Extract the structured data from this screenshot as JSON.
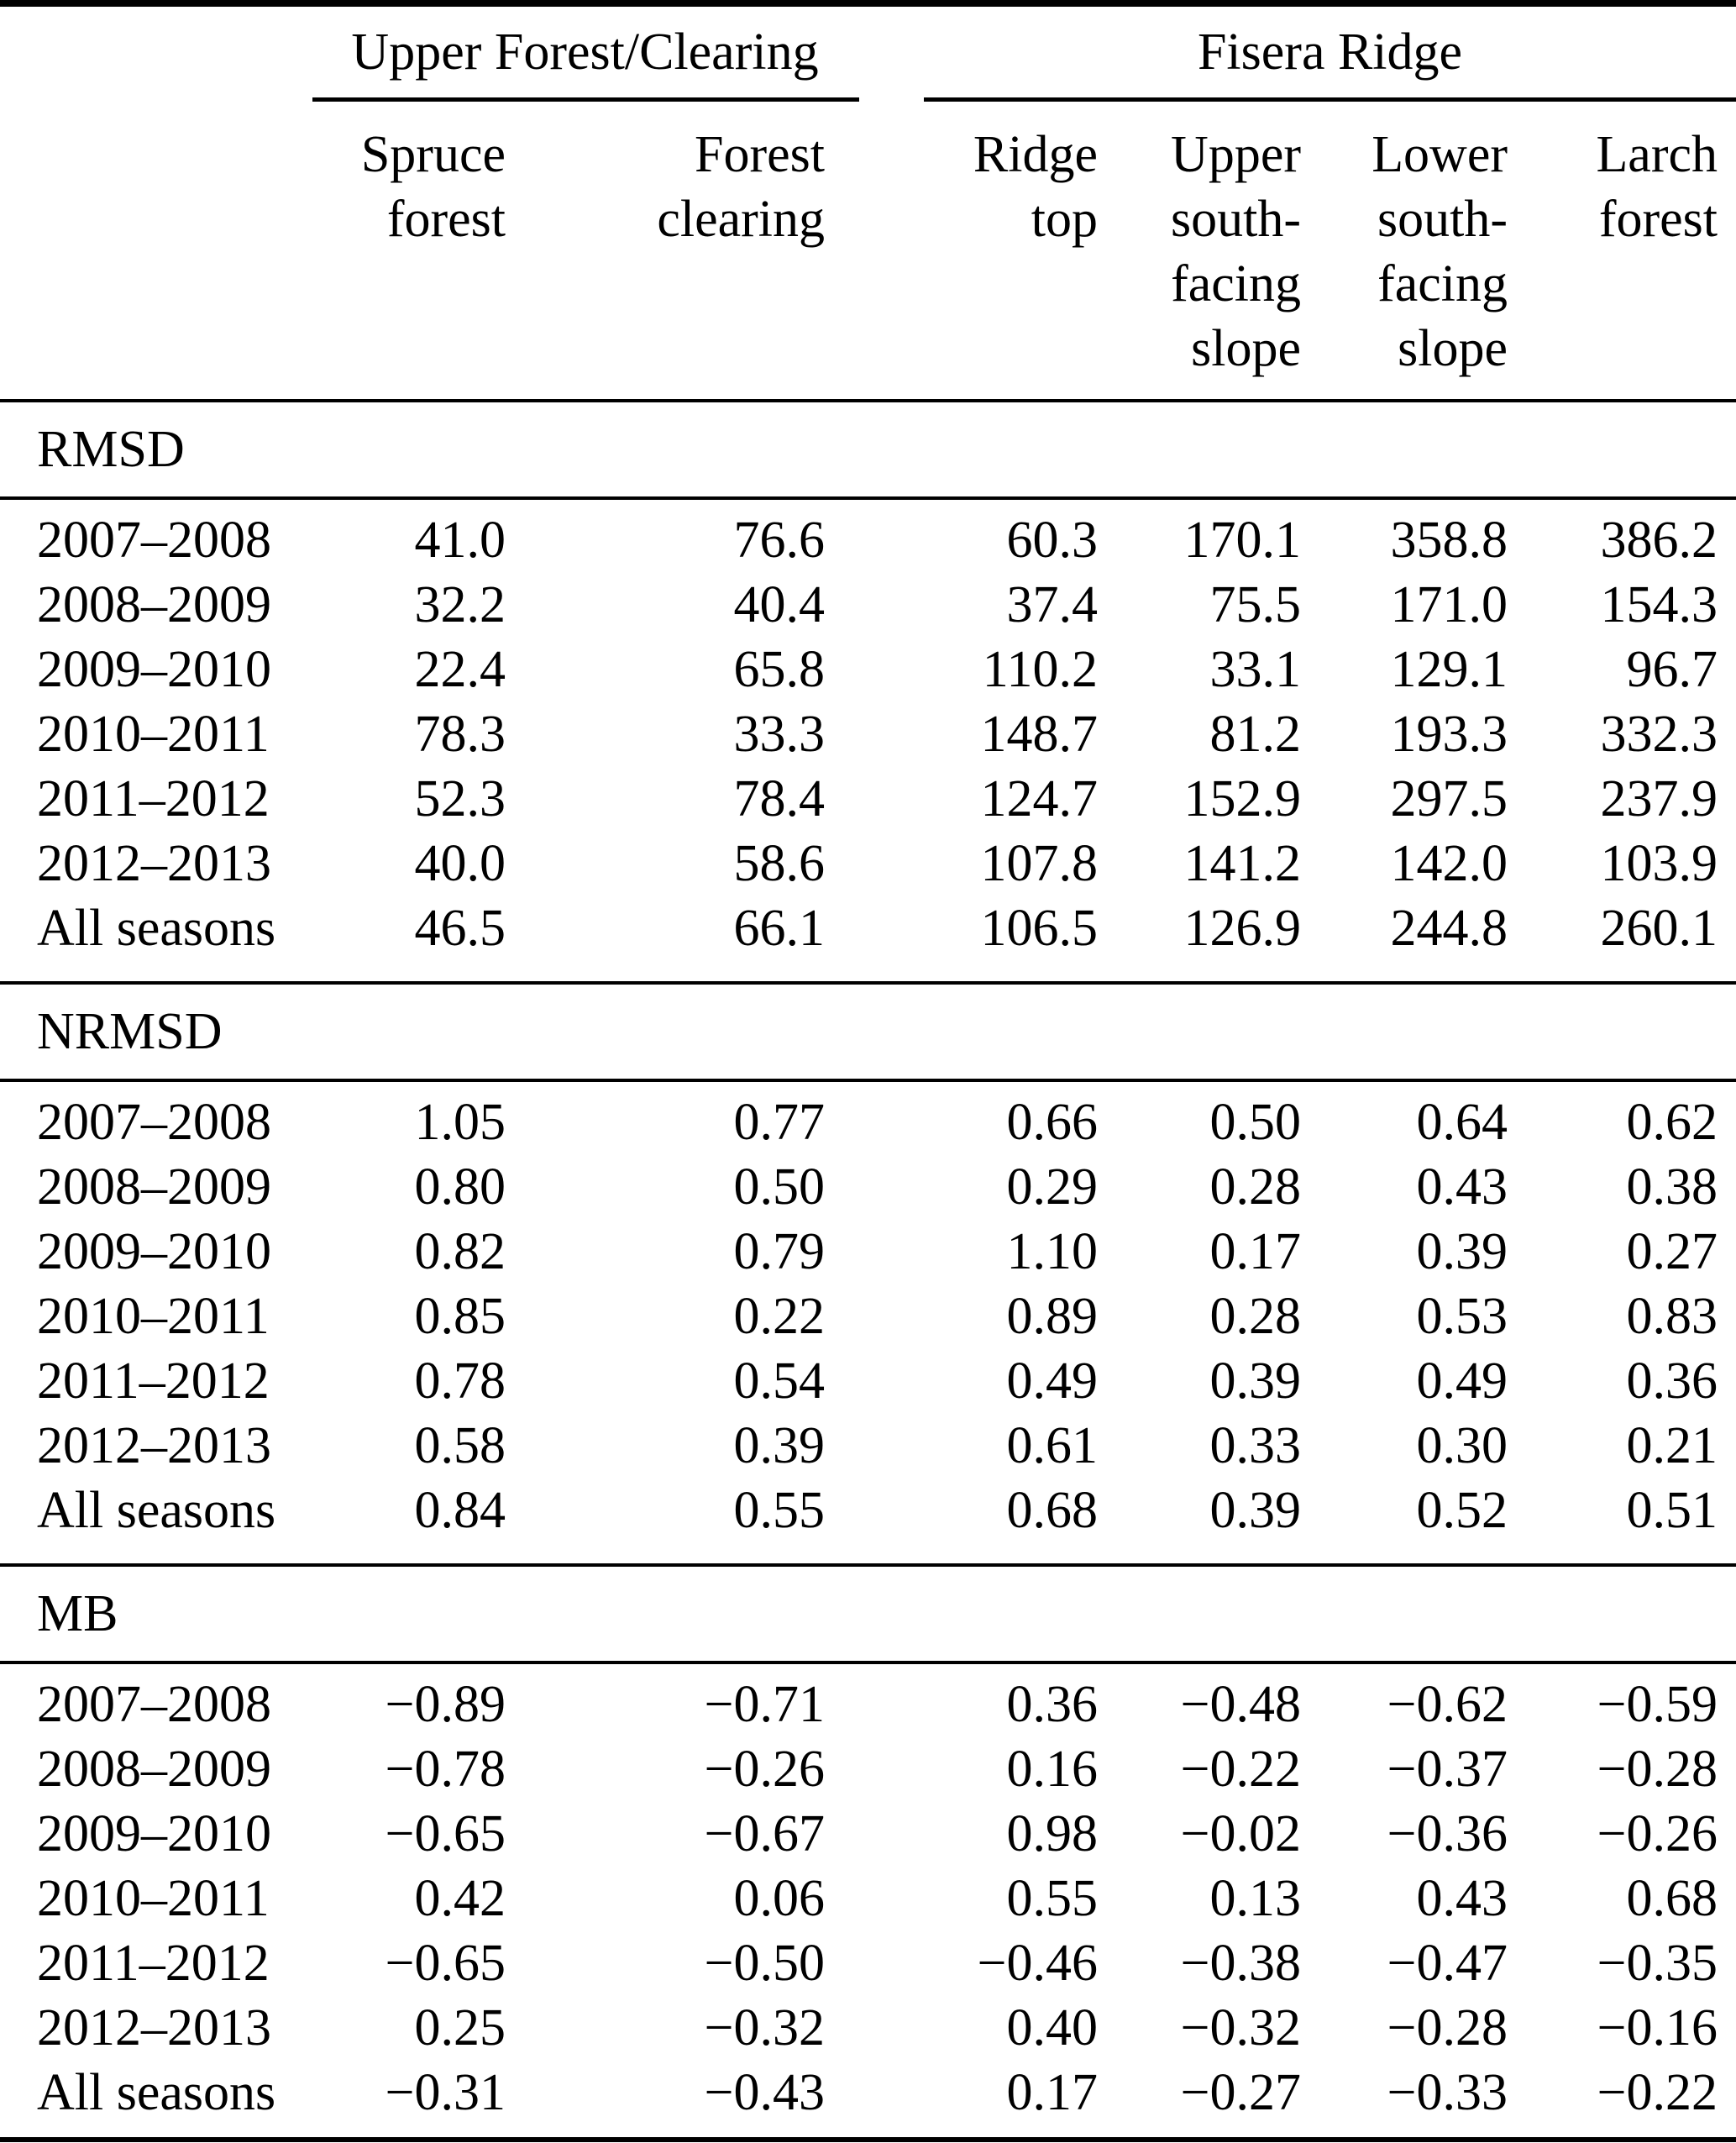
{
  "page": {
    "background": "#ffffff",
    "text_color": "#000000"
  },
  "table": {
    "column_groups": [
      {
        "label": "Upper Forest/Clearing"
      },
      {
        "label": "Fisera Ridge"
      }
    ],
    "columns": [
      {
        "id": "spruce-forest",
        "lines": [
          "Spruce",
          "forest"
        ]
      },
      {
        "id": "forest-clearing",
        "lines": [
          "Forest",
          "clearing"
        ]
      },
      {
        "id": "ridge-top",
        "lines": [
          "Ridge",
          "top"
        ]
      },
      {
        "id": "upper-south-facing-slope",
        "lines": [
          "Upper",
          "south-",
          "facing",
          "slope"
        ]
      },
      {
        "id": "lower-south-facing-slope",
        "lines": [
          "Lower",
          "south-",
          "facing",
          "slope"
        ]
      },
      {
        "id": "larch-forest",
        "lines": [
          "Larch",
          "forest"
        ]
      }
    ],
    "sections": [
      {
        "label": "RMSD",
        "rows": [
          {
            "label": "2007–2008",
            "values": [
              "41.0",
              "76.6",
              "60.3",
              "170.1",
              "358.8",
              "386.2"
            ]
          },
          {
            "label": "2008–2009",
            "values": [
              "32.2",
              "40.4",
              "37.4",
              "75.5",
              "171.0",
              "154.3"
            ]
          },
          {
            "label": "2009–2010",
            "values": [
              "22.4",
              "65.8",
              "110.2",
              "33.1",
              "129.1",
              "96.7"
            ]
          },
          {
            "label": "2010–2011",
            "values": [
              "78.3",
              "33.3",
              "148.7",
              "81.2",
              "193.3",
              "332.3"
            ]
          },
          {
            "label": "2011–2012",
            "values": [
              "52.3",
              "78.4",
              "124.7",
              "152.9",
              "297.5",
              "237.9"
            ]
          },
          {
            "label": "2012–2013",
            "values": [
              "40.0",
              "58.6",
              "107.8",
              "141.2",
              "142.0",
              "103.9"
            ]
          },
          {
            "label": "All seasons",
            "values": [
              "46.5",
              "66.1",
              "106.5",
              "126.9",
              "244.8",
              "260.1"
            ]
          }
        ]
      },
      {
        "label": "NRMSD",
        "rows": [
          {
            "label": "2007–2008",
            "values": [
              "1.05",
              "0.77",
              "0.66",
              "0.50",
              "0.64",
              "0.62"
            ]
          },
          {
            "label": "2008–2009",
            "values": [
              "0.80",
              "0.50",
              "0.29",
              "0.28",
              "0.43",
              "0.38"
            ]
          },
          {
            "label": "2009–2010",
            "values": [
              "0.82",
              "0.79",
              "1.10",
              "0.17",
              "0.39",
              "0.27"
            ]
          },
          {
            "label": "2010–2011",
            "values": [
              "0.85",
              "0.22",
              "0.89",
              "0.28",
              "0.53",
              "0.83"
            ]
          },
          {
            "label": "2011–2012",
            "values": [
              "0.78",
              "0.54",
              "0.49",
              "0.39",
              "0.49",
              "0.36"
            ]
          },
          {
            "label": "2012–2013",
            "values": [
              "0.58",
              "0.39",
              "0.61",
              "0.33",
              "0.30",
              "0.21"
            ]
          },
          {
            "label": "All seasons",
            "values": [
              "0.84",
              "0.55",
              "0.68",
              "0.39",
              "0.52",
              "0.51"
            ]
          }
        ]
      },
      {
        "label": "MB",
        "rows": [
          {
            "label": "2007–2008",
            "values": [
              "−0.89",
              "−0.71",
              "0.36",
              "−0.48",
              "−0.62",
              "−0.59"
            ]
          },
          {
            "label": "2008–2009",
            "values": [
              "−0.78",
              "−0.26",
              "0.16",
              "−0.22",
              "−0.37",
              "−0.28"
            ]
          },
          {
            "label": "2009–2010",
            "values": [
              "−0.65",
              "−0.67",
              "0.98",
              "−0.02",
              "−0.36",
              "−0.26"
            ]
          },
          {
            "label": "2010–2011",
            "values": [
              "0.42",
              "0.06",
              "0.55",
              "0.13",
              "0.43",
              "0.68"
            ]
          },
          {
            "label": "2011–2012",
            "values": [
              "−0.65",
              "−0.50",
              "−0.46",
              "−0.38",
              "−0.47",
              "−0.35"
            ]
          },
          {
            "label": "2012–2013",
            "values": [
              "0.25",
              "−0.32",
              "0.40",
              "−0.32",
              "−0.28",
              "−0.16"
            ]
          },
          {
            "label": "All seasons",
            "values": [
              "−0.31",
              "−0.43",
              "0.17",
              "−0.27",
              "−0.33",
              "−0.22"
            ]
          }
        ]
      }
    ]
  }
}
